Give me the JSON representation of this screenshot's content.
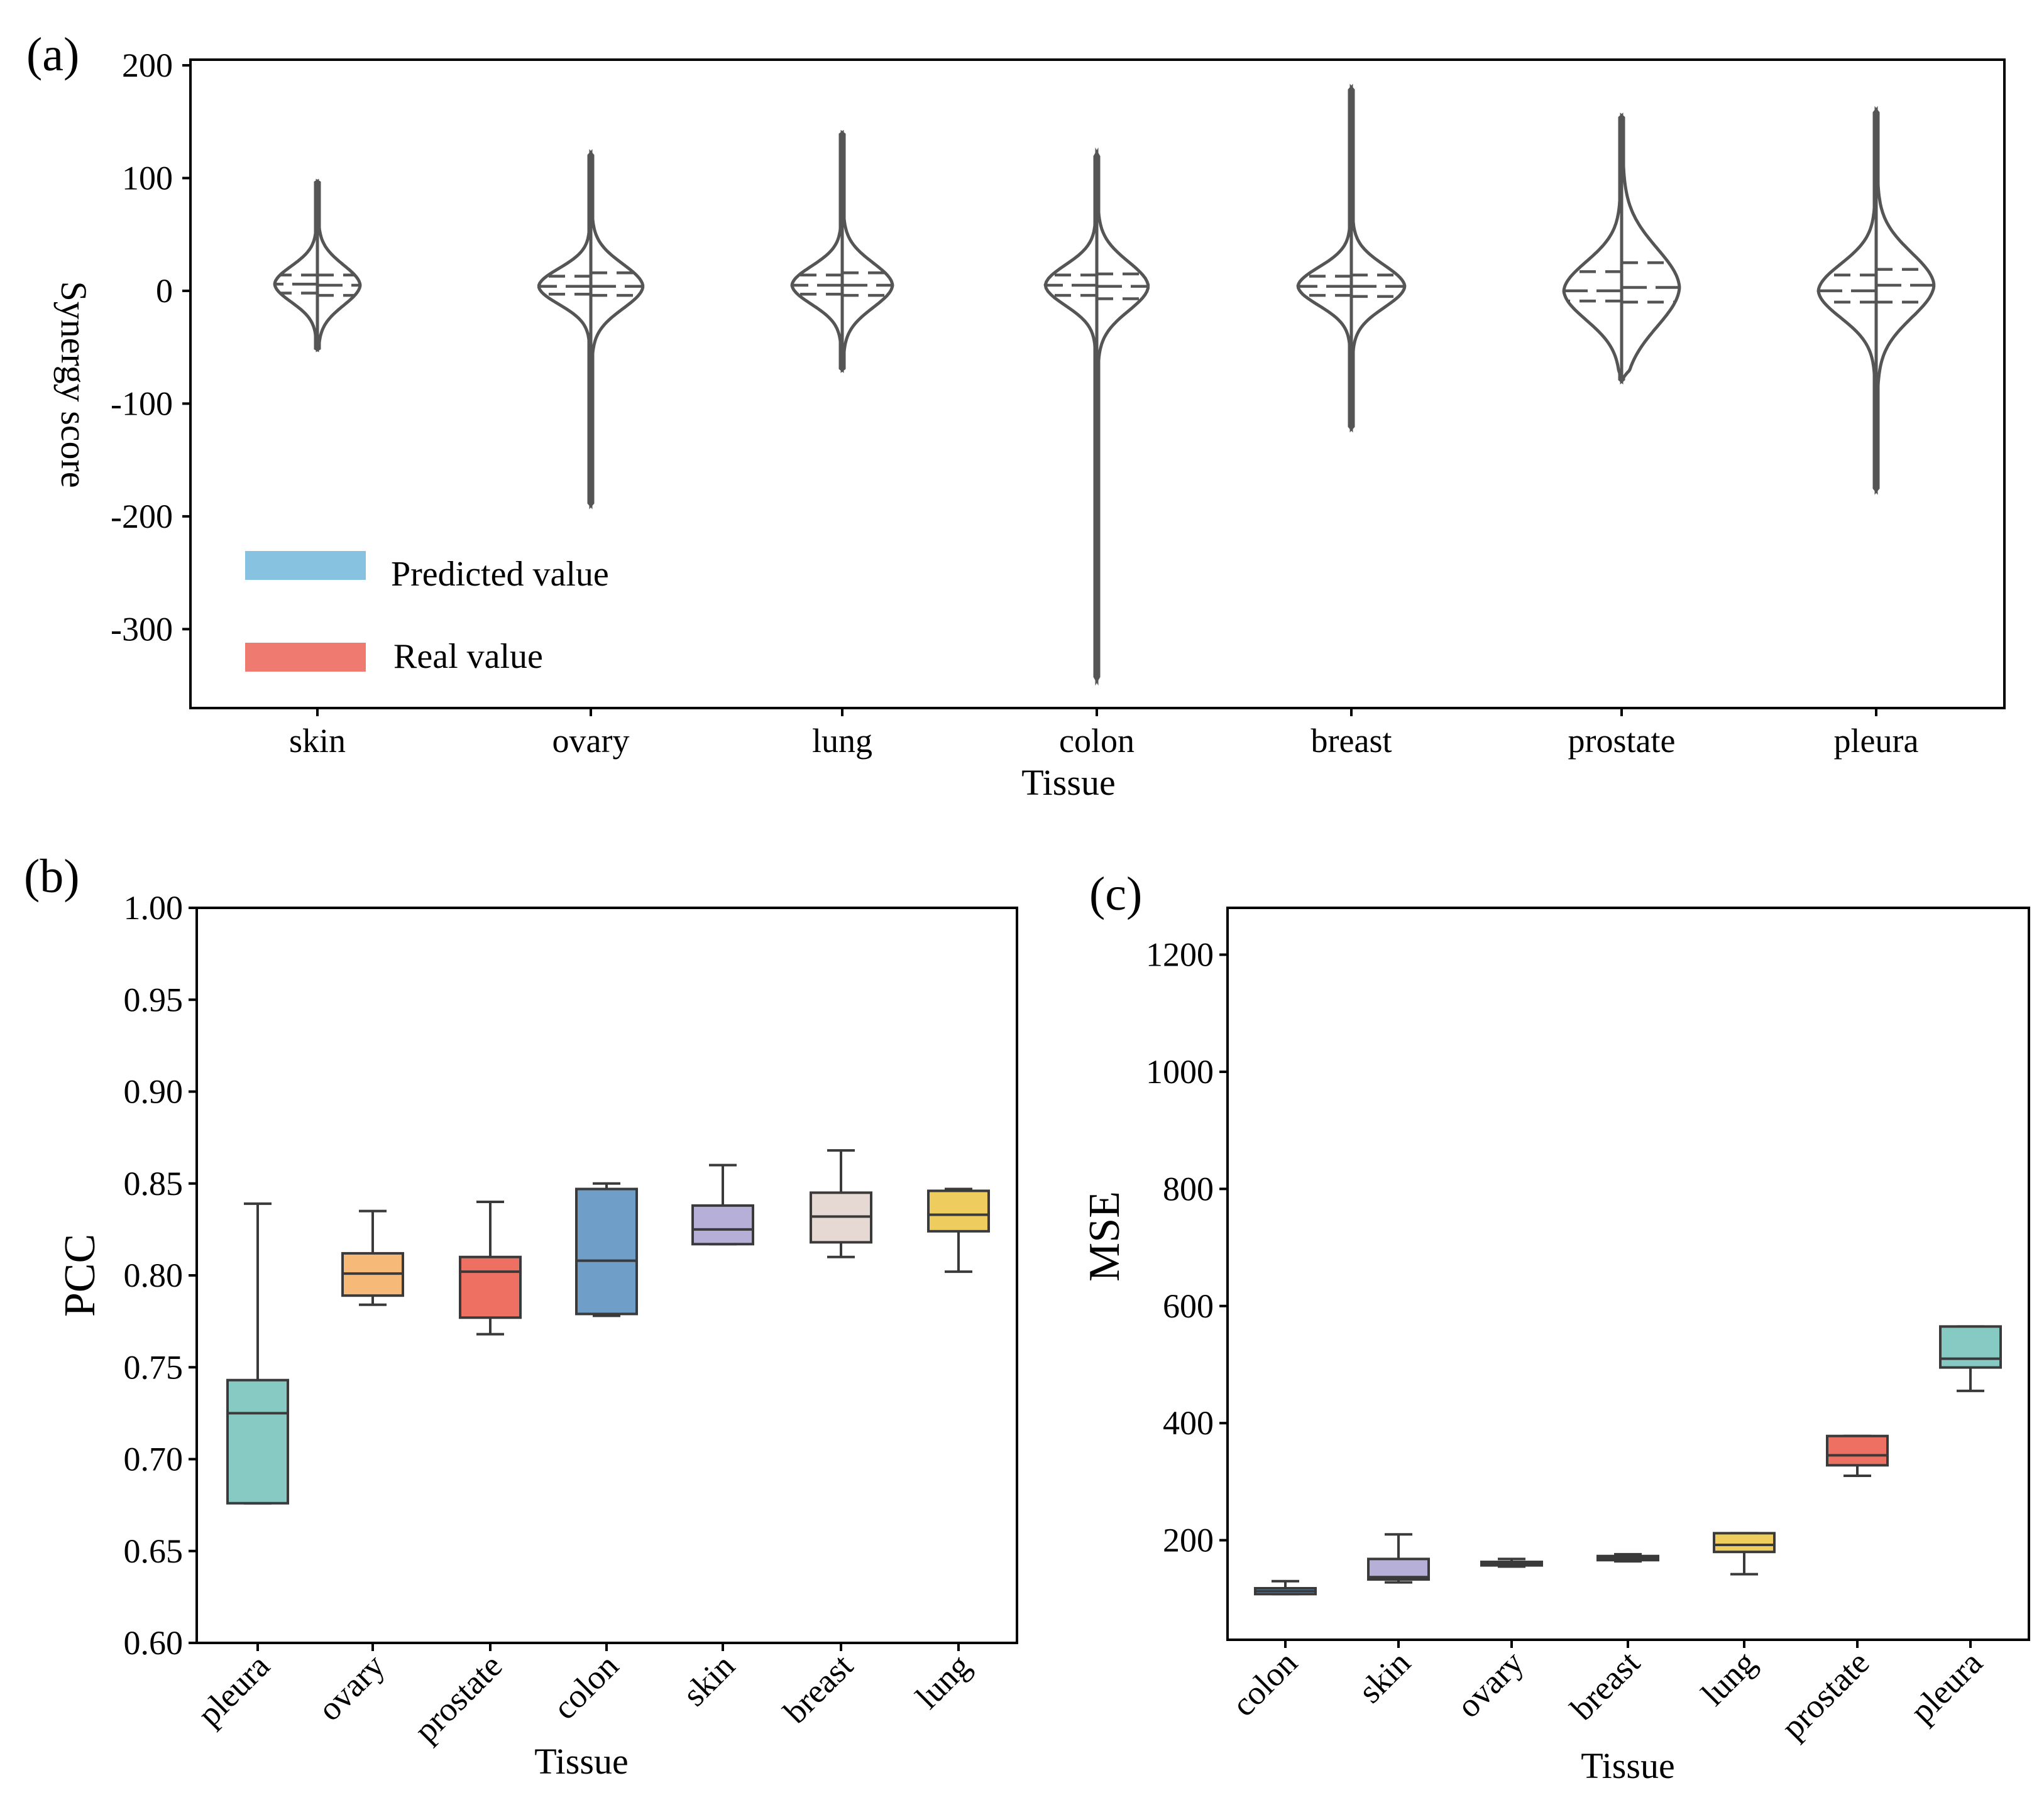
{
  "chart_data": [
    {
      "id": "a",
      "panel_label": "(a)",
      "type": "violin",
      "title": "",
      "xlabel": "Tissue",
      "ylabel": "Synergy score",
      "ylim": [
        -370,
        205
      ],
      "yticks": [
        200,
        100,
        0,
        -100,
        -200,
        -300
      ],
      "ytick_labels": [
        "200",
        "100",
        "0",
        "-100",
        "-200",
        "-300"
      ],
      "categories": [
        "skin",
        "ovary",
        "lung",
        "colon",
        "breast",
        "prostate",
        "pleura"
      ],
      "legend": {
        "position": "lower-left",
        "entries": [
          {
            "label": "Predicted value",
            "color": "#87C3E0"
          },
          {
            "label": "Real value",
            "color": "#EF7A6F"
          }
        ]
      },
      "series": [
        {
          "name": "Predicted value",
          "side": "left",
          "color": "#87C3E0",
          "min": [
            -52,
            -190,
            -70,
            -345,
            -122,
            -80,
            -177
          ],
          "max": [
            97,
            122,
            140,
            122,
            180,
            155,
            160
          ],
          "q1": [
            -2,
            -3,
            -3,
            -4,
            -4,
            -9,
            -10
          ],
          "median": [
            6,
            4,
            5,
            5,
            4,
            0,
            0
          ],
          "q3": [
            14,
            13,
            14,
            14,
            13,
            17,
            14
          ],
          "max_width": [
            68,
            83,
            80,
            82,
            85,
            92,
            92
          ]
        },
        {
          "name": "Real value",
          "side": "right",
          "color": "#EF7A6F",
          "min": [
            -52,
            -190,
            -70,
            -345,
            -122,
            -80,
            -177
          ],
          "max": [
            97,
            122,
            140,
            122,
            180,
            155,
            160
          ],
          "q1": [
            -4,
            -4,
            -4,
            -7,
            -5,
            -10,
            -10
          ],
          "median": [
            5,
            4,
            5,
            4,
            4,
            3,
            5
          ],
          "q3": [
            14,
            16,
            16,
            15,
            14,
            25,
            19
          ],
          "max_width": [
            68,
            83,
            80,
            82,
            85,
            92,
            92
          ]
        }
      ]
    },
    {
      "id": "b",
      "panel_label": "(b)",
      "type": "box",
      "title": "",
      "xlabel": "Tissue",
      "ylabel": "PCC",
      "ylim": [
        0.6,
        1.0
      ],
      "yticks": [
        1.0,
        0.95,
        0.9,
        0.85,
        0.8,
        0.75,
        0.7,
        0.65,
        0.6
      ],
      "ytick_labels": [
        "1.00",
        "0.95",
        "0.90",
        "0.85",
        "0.80",
        "0.75",
        "0.70",
        "0.65",
        "0.60"
      ],
      "categories": [
        "pleura",
        "ovary",
        "prostate",
        "colon",
        "skin",
        "breast",
        "lung"
      ],
      "colors": [
        "#87C9C3",
        "#F7B978",
        "#EE7062",
        "#6F9FC8",
        "#B6B0D9",
        "#E6D8D2",
        "#EECC5E"
      ],
      "whisker_low": [
        0.676,
        0.784,
        0.768,
        0.778,
        0.817,
        0.81,
        0.802
      ],
      "q1": [
        0.676,
        0.789,
        0.777,
        0.779,
        0.817,
        0.818,
        0.824
      ],
      "median": [
        0.725,
        0.801,
        0.802,
        0.808,
        0.825,
        0.832,
        0.833
      ],
      "q3": [
        0.743,
        0.812,
        0.81,
        0.847,
        0.838,
        0.845,
        0.846
      ],
      "whisker_high": [
        0.839,
        0.835,
        0.84,
        0.85,
        0.86,
        0.868,
        0.847
      ]
    },
    {
      "id": "c",
      "panel_label": "(c)",
      "type": "box",
      "title": "",
      "xlabel": "Tissue",
      "ylabel": "MSE",
      "ylim": [
        30,
        1280
      ],
      "yticks": [
        1200,
        1000,
        800,
        600,
        400,
        200
      ],
      "ytick_labels": [
        "1200",
        "1000",
        "800",
        "600",
        "400",
        "200"
      ],
      "categories": [
        "colon",
        "skin",
        "ovary",
        "breast",
        "lung",
        "prostate",
        "pleura"
      ],
      "colors": [
        "#6F9FC8",
        "#B6B0D9",
        "#F7B978",
        "#E6D8D2",
        "#EECC5E",
        "#EE7062",
        "#87C9C3"
      ],
      "whisker_low": [
        108,
        128,
        155,
        164,
        142,
        310,
        455
      ],
      "q1": [
        108,
        133,
        157,
        166,
        180,
        328,
        495
      ],
      "median": [
        113,
        137,
        160,
        169,
        192,
        345,
        510
      ],
      "q3": [
        118,
        168,
        163,
        173,
        212,
        378,
        565
      ],
      "whisker_high": [
        130,
        210,
        168,
        176,
        212,
        378,
        565
      ]
    }
  ]
}
